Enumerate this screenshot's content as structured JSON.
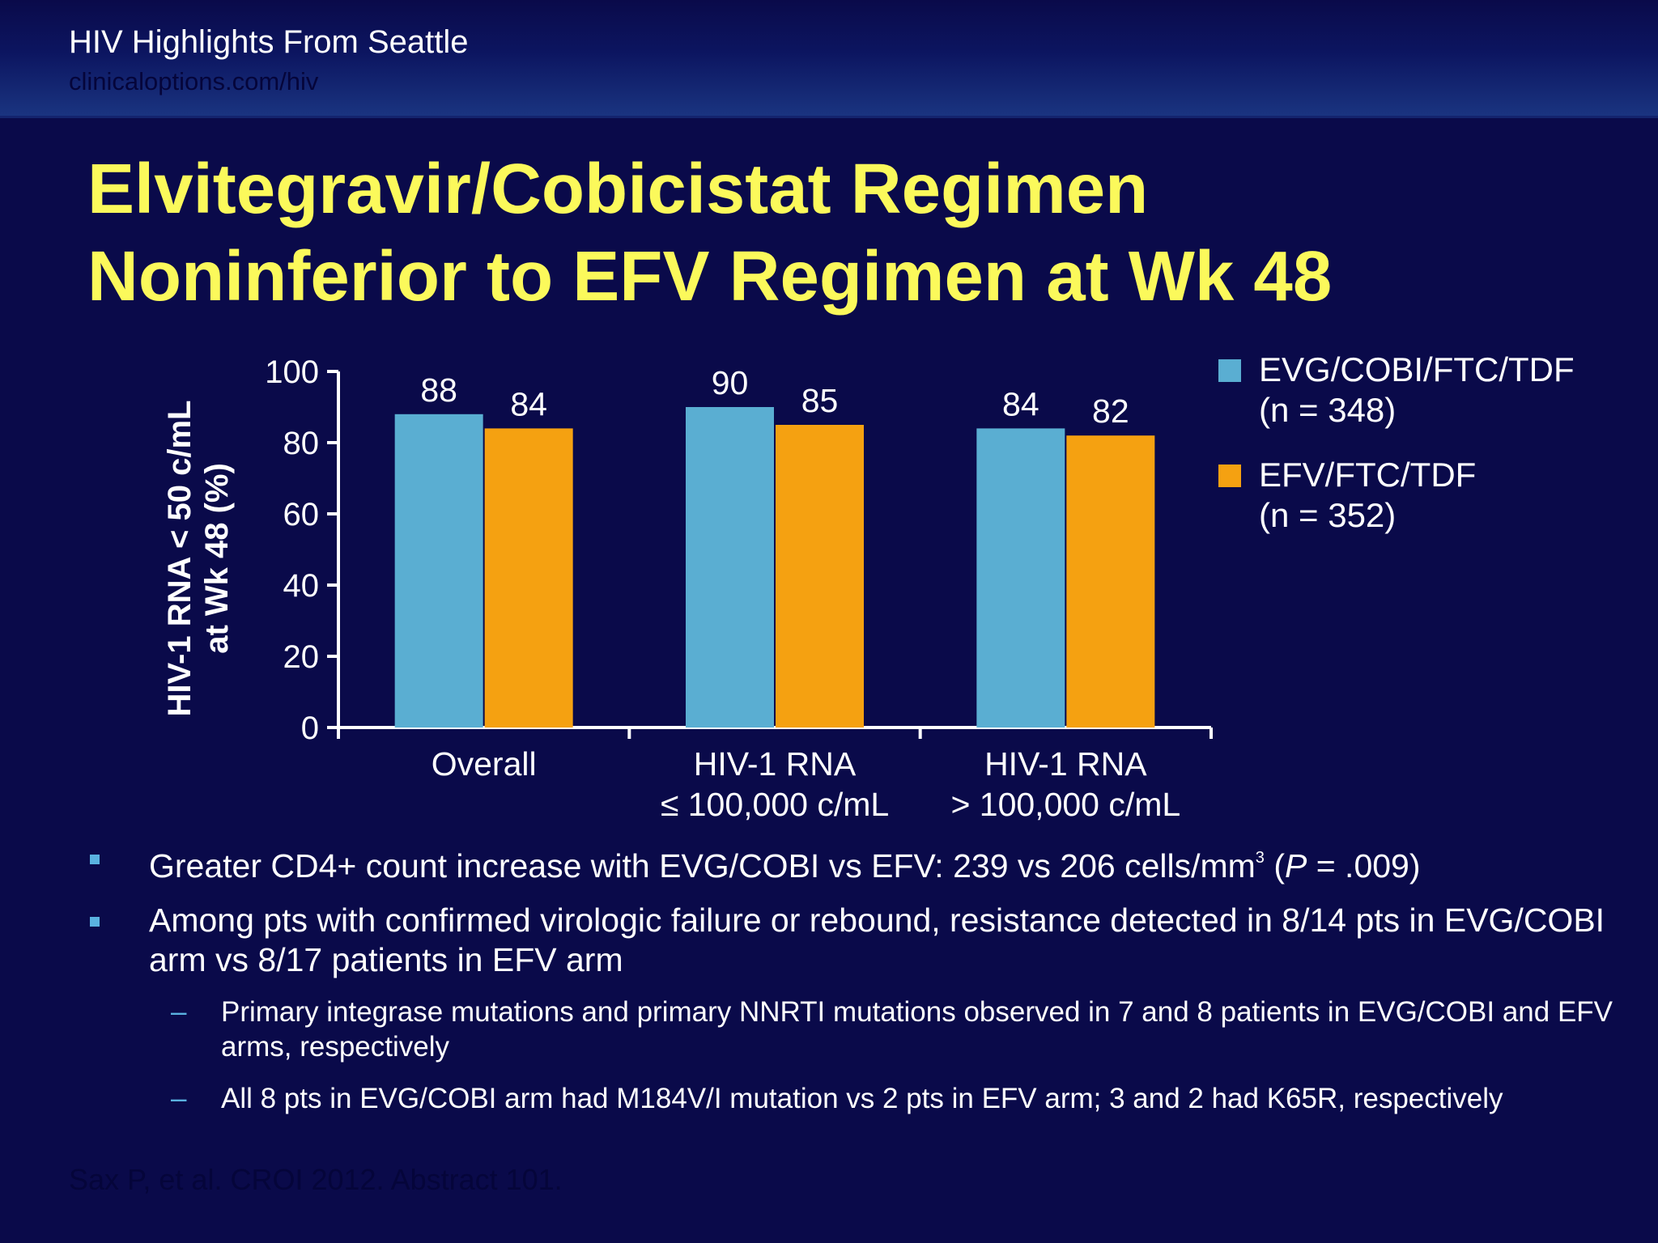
{
  "header": {
    "title": "HIV Highlights From Seattle",
    "url": "clinicaloptions.com/hiv"
  },
  "slide": {
    "title_line1": "Elvitegravir/Cobicistat Regimen",
    "title_line2": "Noninferior to EFV Regimen at Wk 48"
  },
  "colors": {
    "background": "#0a0a4a",
    "title": "#fbf95b",
    "series1": "#5aaed2",
    "series2": "#f5a111"
  },
  "chart_data": {
    "type": "bar",
    "ylabel_line1": "HIV-1 RNA < 50 c/mL",
    "ylabel_line2": "at Wk 48 (%)",
    "ylim": [
      0,
      100
    ],
    "yticks": [
      "0",
      "20",
      "40",
      "60",
      "80",
      "100"
    ],
    "categories": [
      {
        "line1": "Overall",
        "line2": ""
      },
      {
        "line1": "HIV-1 RNA",
        "line2": "≤ 100,000 c/mL"
      },
      {
        "line1": "HIV-1 RNA",
        "line2": "> 100,000 c/mL"
      }
    ],
    "series": [
      {
        "name_line1": "EVG/COBI/FTC/TDF",
        "name_line2": "(n = 348)",
        "values": [
          88,
          90,
          84
        ]
      },
      {
        "name_line1": "EFV/FTC/TDF",
        "name_line2": "(n = 352)",
        "values": [
          84,
          85,
          82
        ]
      }
    ],
    "legend_placement": "right",
    "grid": false
  },
  "bullets": [
    {
      "pre": "Greater CD4+ count increase with EVG/COBI vs EFV: 239 vs 206 cells/mm",
      "sup": "3",
      "mid": " (",
      "italic": "P",
      "post": " = .009)"
    },
    {
      "text": "Among pts with confirmed virologic failure or rebound, resistance detected in 8/14 pts in EVG/COBI arm vs 8/17 patients in EFV arm"
    }
  ],
  "sub_bullets": [
    {
      "dash": "–",
      "text": "Primary integrase mutations and primary NNRTI mutations observed in 7 and 8 patients in EVG/COBI and EFV arms, respectively"
    },
    {
      "dash": "–",
      "text": "All 8 pts in EVG/COBI arm had M184V/I mutation vs 2 pts in EFV arm; 3 and 2 had K65R, respectively"
    }
  ],
  "footer": {
    "citation": "Sax P, et al. CROI 2012. Abstract 101."
  }
}
